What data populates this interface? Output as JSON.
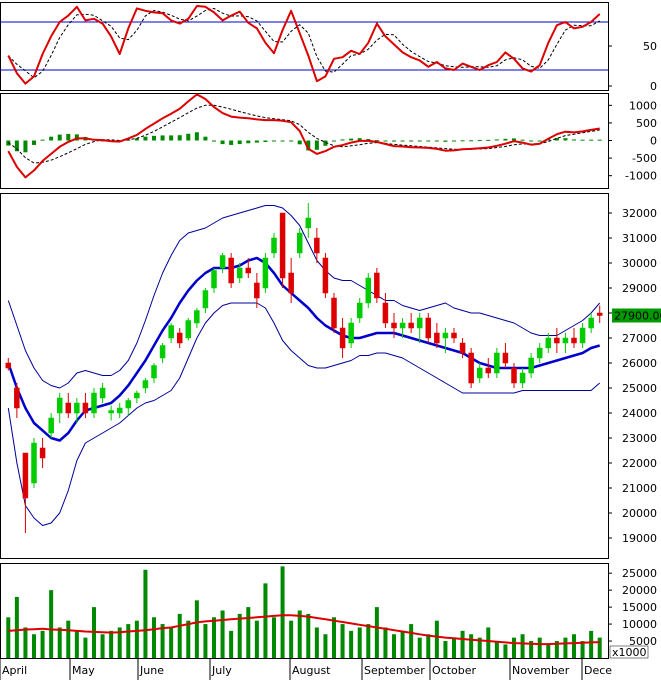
{
  "chart_data": [
    {
      "type": "line",
      "panel": "oscillator",
      "ylim": [
        -5,
        105
      ],
      "y_ticks": [
        0,
        50
      ],
      "reference_levels": [
        80,
        20
      ],
      "colors": {
        "main": "#dd0000",
        "signal": "#000000",
        "reference": "#0000cc"
      },
      "series": [
        {
          "name": "",
          "values": [
            38,
            16,
            3,
            12,
            40,
            62,
            80,
            88,
            99,
            82,
            84,
            78,
            62,
            40,
            72,
            97,
            94,
            92,
            91,
            82,
            78,
            84,
            100,
            99,
            92,
            82,
            88,
            93,
            79,
            72,
            54,
            41,
            70,
            94,
            66,
            38,
            6,
            12,
            34,
            36,
            44,
            40,
            54,
            78,
            62,
            52,
            42,
            36,
            32,
            24,
            30,
            22,
            20,
            28,
            24,
            20,
            26,
            30,
            42,
            34,
            22,
            18,
            26,
            54,
            76,
            80,
            72,
            74,
            80,
            90
          ]
        }
      ]
    },
    {
      "type": "bar",
      "panel": "macd",
      "ylim": [
        -1350,
        1350
      ],
      "y_ticks": [
        1000,
        500,
        0,
        -500,
        -1000
      ],
      "colors": {
        "line": "#dd0000",
        "signal": "#000000",
        "hist_pos": "#008800",
        "hist_neg": "#008800"
      },
      "series": [
        {
          "name": "",
          "values": [
            -300,
            -750,
            -1050,
            -850,
            -580,
            -380,
            -180,
            -40,
            60,
            60,
            20,
            10,
            -20,
            -30,
            60,
            160,
            330,
            480,
            630,
            760,
            900,
            1110,
            1310,
            1180,
            950,
            780,
            680,
            650,
            630,
            600,
            580,
            580,
            560,
            520,
            270,
            -240,
            -380,
            -300,
            -180,
            -130,
            -60,
            -10,
            -10,
            -40,
            -100,
            -160,
            -170,
            -190,
            -200,
            -210,
            -240,
            -290,
            -280,
            -250,
            -240,
            -220,
            -200,
            -150,
            -90,
            -20,
            -60,
            -120,
            -90,
            50,
            180,
            250,
            230,
            260,
            300,
            340
          ]
        },
        {
          "name": "",
          "values": [
            -60,
            -240,
            -490,
            -640,
            -620,
            -560,
            -460,
            -350,
            -230,
            -110,
            -30,
            20,
            20,
            0,
            20,
            60,
            150,
            260,
            390,
            520,
            650,
            790,
            920,
            1000,
            1000,
            950,
            890,
            820,
            760,
            700,
            650,
            620,
            590,
            560,
            450,
            230,
            60,
            -50,
            -150,
            -180,
            -150,
            -120,
            -80,
            -60,
            -80,
            -110,
            -130,
            -150,
            -170,
            -190,
            -210,
            -230,
            -250,
            -260,
            -250,
            -240,
            -230,
            -200,
            -170,
            -120,
            -100,
            -100,
            -90,
            -30,
            60,
            140,
            180,
            220,
            260,
            300
          ]
        }
      ]
    },
    {
      "type": "candlestick",
      "panel": "price",
      "ylim": [
        18200,
        32800
      ],
      "y_ticks": [
        19000,
        20000,
        21000,
        22000,
        23000,
        24000,
        25000,
        26000,
        27000,
        28000,
        29000,
        30000,
        31000,
        32000
      ],
      "last_price_label": "27900.00",
      "x_labels": [
        "April",
        "May",
        "June",
        "July",
        "August",
        "September",
        "October",
        "November",
        "Dece"
      ],
      "colors": {
        "up": "#00cc00",
        "down": "#dd0000",
        "sma": "#0000cc",
        "bands": "#000099",
        "label_bg": "#009900"
      },
      "sma_20": [
        26000,
        25000,
        24200,
        23600,
        23300,
        23000,
        22900,
        23200,
        23700,
        24100,
        24200,
        24300,
        24400,
        24700,
        25100,
        25600,
        26100,
        26700,
        27300,
        27800,
        28400,
        28900,
        29300,
        29600,
        29800,
        29800,
        29800,
        29900,
        30100,
        30200,
        30000,
        29600,
        29100,
        28800,
        28500,
        28200,
        27800,
        27500,
        27300,
        27100,
        27000,
        27000,
        27100,
        27200,
        27200,
        27200,
        27100,
        27000,
        26900,
        26800,
        26700,
        26600,
        26500,
        26400,
        26200,
        26000,
        25900,
        25800,
        25800,
        25800,
        25800,
        25800,
        25900,
        26000,
        26100,
        26200,
        26300,
        26400,
        26600,
        26700
      ],
      "upper_band": [
        28500,
        27500,
        26500,
        25800,
        25300,
        25100,
        25000,
        25200,
        25600,
        25700,
        25600,
        25500,
        25500,
        25700,
        26100,
        26800,
        27700,
        28700,
        29600,
        30300,
        30900,
        31200,
        31300,
        31400,
        31600,
        31800,
        31900,
        32000,
        32100,
        32200,
        32300,
        32300,
        32200,
        31900,
        31500,
        30800,
        30100,
        29700,
        29400,
        29300,
        29300,
        29100,
        28900,
        28700,
        28500,
        28500,
        28300,
        28200,
        28100,
        28200,
        28300,
        28400,
        28200,
        28100,
        28000,
        28000,
        27900,
        27800,
        27700,
        27600,
        27400,
        27200,
        27100,
        27100,
        27100,
        27300,
        27500,
        27700,
        28000,
        28400
      ],
      "lower_band": [
        24200,
        22000,
        20300,
        19800,
        19500,
        19600,
        20000,
        20900,
        22100,
        22800,
        23000,
        23200,
        23400,
        23600,
        23900,
        24200,
        24400,
        24500,
        24700,
        24900,
        25400,
        26200,
        27000,
        27600,
        28000,
        28300,
        28400,
        28400,
        28400,
        28400,
        28200,
        27600,
        26900,
        26500,
        26200,
        25900,
        25800,
        25800,
        25900,
        26000,
        26100,
        26300,
        26300,
        26400,
        26400,
        26300,
        26200,
        26000,
        25800,
        25600,
        25400,
        25200,
        25000,
        24800,
        24800,
        24800,
        24800,
        24800,
        24800,
        24800,
        24900,
        24900,
        24900,
        24900,
        24900,
        24900,
        24900,
        24900,
        24900,
        25200
      ],
      "candles": [
        {
          "o": 26000,
          "h": 26200,
          "l": 25700,
          "c": 25800
        },
        {
          "o": 25000,
          "h": 25200,
          "l": 23800,
          "c": 24200
        },
        {
          "o": 22400,
          "h": 22400,
          "l": 19200,
          "c": 20600
        },
        {
          "o": 21200,
          "h": 23000,
          "l": 21000,
          "c": 22800
        },
        {
          "o": 22600,
          "h": 23000,
          "l": 21800,
          "c": 22200
        },
        {
          "o": 23200,
          "h": 24000,
          "l": 23000,
          "c": 23800
        },
        {
          "o": 24000,
          "h": 24800,
          "l": 23600,
          "c": 24600
        },
        {
          "o": 24400,
          "h": 24800,
          "l": 23800,
          "c": 24000
        },
        {
          "o": 24000,
          "h": 24600,
          "l": 23600,
          "c": 24400
        },
        {
          "o": 24400,
          "h": 24800,
          "l": 23800,
          "c": 24000
        },
        {
          "o": 24000,
          "h": 25000,
          "l": 23800,
          "c": 24800
        },
        {
          "o": 24600,
          "h": 25200,
          "l": 24400,
          "c": 25000
        },
        {
          "o": 24000,
          "h": 24300,
          "l": 23700,
          "c": 24100
        },
        {
          "o": 24000,
          "h": 24400,
          "l": 23800,
          "c": 24200
        },
        {
          "o": 24200,
          "h": 24600,
          "l": 23900,
          "c": 24500
        },
        {
          "o": 24600,
          "h": 24900,
          "l": 24400,
          "c": 24800
        },
        {
          "o": 25000,
          "h": 25400,
          "l": 24800,
          "c": 25300
        },
        {
          "o": 25400,
          "h": 26000,
          "l": 25200,
          "c": 25900
        },
        {
          "o": 26200,
          "h": 26800,
          "l": 26000,
          "c": 26700
        },
        {
          "o": 27000,
          "h": 27600,
          "l": 26800,
          "c": 27500
        },
        {
          "o": 27200,
          "h": 27400,
          "l": 26600,
          "c": 26800
        },
        {
          "o": 27000,
          "h": 27800,
          "l": 26900,
          "c": 27700
        },
        {
          "o": 27600,
          "h": 28200,
          "l": 27400,
          "c": 28100
        },
        {
          "o": 28200,
          "h": 29000,
          "l": 28000,
          "c": 28900
        },
        {
          "o": 29000,
          "h": 29800,
          "l": 28800,
          "c": 29700
        },
        {
          "o": 29800,
          "h": 30400,
          "l": 29600,
          "c": 30300
        },
        {
          "o": 30200,
          "h": 30400,
          "l": 29000,
          "c": 29200
        },
        {
          "o": 29400,
          "h": 30000,
          "l": 29200,
          "c": 29800
        },
        {
          "o": 29800,
          "h": 30200,
          "l": 29400,
          "c": 29600
        },
        {
          "o": 29200,
          "h": 29600,
          "l": 28200,
          "c": 28600
        },
        {
          "o": 29000,
          "h": 30400,
          "l": 28800,
          "c": 30200
        },
        {
          "o": 30400,
          "h": 31200,
          "l": 30200,
          "c": 31000
        },
        {
          "o": 32000,
          "h": 32000,
          "l": 29000,
          "c": 29400
        },
        {
          "o": 29600,
          "h": 30200,
          "l": 28400,
          "c": 28800
        },
        {
          "o": 30400,
          "h": 31400,
          "l": 30200,
          "c": 31200
        },
        {
          "o": 31400,
          "h": 32400,
          "l": 31000,
          "c": 31800
        },
        {
          "o": 31000,
          "h": 31400,
          "l": 30000,
          "c": 30400
        },
        {
          "o": 30200,
          "h": 30400,
          "l": 28600,
          "c": 28800
        },
        {
          "o": 28600,
          "h": 28800,
          "l": 27200,
          "c": 27400
        },
        {
          "o": 27400,
          "h": 27800,
          "l": 26200,
          "c": 26600
        },
        {
          "o": 26800,
          "h": 27800,
          "l": 26600,
          "c": 27600
        },
        {
          "o": 27800,
          "h": 28600,
          "l": 27600,
          "c": 28400
        },
        {
          "o": 28400,
          "h": 29600,
          "l": 28200,
          "c": 29400
        },
        {
          "o": 29600,
          "h": 29800,
          "l": 28400,
          "c": 28600
        },
        {
          "o": 28400,
          "h": 28800,
          "l": 27400,
          "c": 27600
        },
        {
          "o": 27600,
          "h": 28000,
          "l": 27000,
          "c": 27400
        },
        {
          "o": 27400,
          "h": 27800,
          "l": 27000,
          "c": 27600
        },
        {
          "o": 27600,
          "h": 28000,
          "l": 27200,
          "c": 27400
        },
        {
          "o": 27400,
          "h": 28000,
          "l": 26800,
          "c": 27800
        },
        {
          "o": 27800,
          "h": 28000,
          "l": 26800,
          "c": 27000
        },
        {
          "o": 27200,
          "h": 27600,
          "l": 26600,
          "c": 26800
        },
        {
          "o": 27000,
          "h": 27400,
          "l": 26400,
          "c": 27200
        },
        {
          "o": 27200,
          "h": 27400,
          "l": 26800,
          "c": 27000
        },
        {
          "o": 26800,
          "h": 27000,
          "l": 26200,
          "c": 26400
        },
        {
          "o": 26400,
          "h": 26600,
          "l": 25000,
          "c": 25200
        },
        {
          "o": 25400,
          "h": 26000,
          "l": 25200,
          "c": 25800
        },
        {
          "o": 25800,
          "h": 26200,
          "l": 25400,
          "c": 25600
        },
        {
          "o": 25600,
          "h": 26600,
          "l": 25400,
          "c": 26400
        },
        {
          "o": 26400,
          "h": 26800,
          "l": 25800,
          "c": 26000
        },
        {
          "o": 25800,
          "h": 26000,
          "l": 25000,
          "c": 25200
        },
        {
          "o": 25200,
          "h": 25800,
          "l": 25000,
          "c": 25600
        },
        {
          "o": 25600,
          "h": 26400,
          "l": 25400,
          "c": 26200
        },
        {
          "o": 26200,
          "h": 26800,
          "l": 26000,
          "c": 26600
        },
        {
          "o": 26600,
          "h": 27200,
          "l": 26400,
          "c": 27000
        },
        {
          "o": 27000,
          "h": 27400,
          "l": 26400,
          "c": 26800
        },
        {
          "o": 26800,
          "h": 27200,
          "l": 26400,
          "c": 27000
        },
        {
          "o": 27000,
          "h": 27400,
          "l": 26600,
          "c": 26800
        },
        {
          "o": 26800,
          "h": 27600,
          "l": 26600,
          "c": 27400
        },
        {
          "o": 27400,
          "h": 28000,
          "l": 27200,
          "c": 27800
        },
        {
          "o": 28000,
          "h": 28300,
          "l": 27600,
          "c": 27900
        }
      ]
    },
    {
      "type": "bar",
      "panel": "volume",
      "ylim": [
        0,
        28000
      ],
      "y_ticks": [
        5000,
        10000,
        15000,
        20000,
        25000
      ],
      "y_unit": "x1000",
      "colors": {
        "bar": "#008800",
        "ma": "#dd0000"
      },
      "values": [
        12000,
        18000,
        9000,
        7000,
        8000,
        20000,
        9000,
        11000,
        8000,
        6000,
        15000,
        7000,
        8000,
        9000,
        10000,
        11000,
        26000,
        12000,
        10000,
        9000,
        13000,
        11000,
        17000,
        10000,
        12000,
        14000,
        8000,
        13000,
        15000,
        11000,
        22000,
        12000,
        27000,
        11000,
        14000,
        13000,
        9000,
        7000,
        12000,
        10000,
        8000,
        9000,
        10000,
        15000,
        9000,
        7000,
        8000,
        10000,
        6000,
        7000,
        11000,
        5000,
        6000,
        8000,
        7000,
        6000,
        9000,
        5000,
        4000,
        6000,
        7000,
        5000,
        6000,
        4000,
        5000,
        6000,
        7000,
        5000,
        8000,
        6000
      ],
      "ma": [
        8000,
        8200,
        8400,
        8500,
        8600,
        8400,
        8300,
        8200,
        8000,
        7800,
        7700,
        7600,
        7500,
        7600,
        7800,
        8000,
        8200,
        8500,
        8800,
        9000,
        9500,
        10000,
        10500,
        10800,
        11000,
        11200,
        11400,
        11600,
        11800,
        12000,
        12200,
        12400,
        12600,
        12600,
        12400,
        12200,
        11800,
        11400,
        11000,
        10600,
        10200,
        9800,
        9400,
        9000,
        8600,
        8200,
        7800,
        7400,
        7000,
        6600,
        6300,
        6000,
        5800,
        5600,
        5400,
        5200,
        5000,
        4800,
        4600,
        4400,
        4300,
        4200,
        4100,
        4100,
        4200,
        4300,
        4400,
        4500,
        4600,
        4700
      ]
    }
  ]
}
